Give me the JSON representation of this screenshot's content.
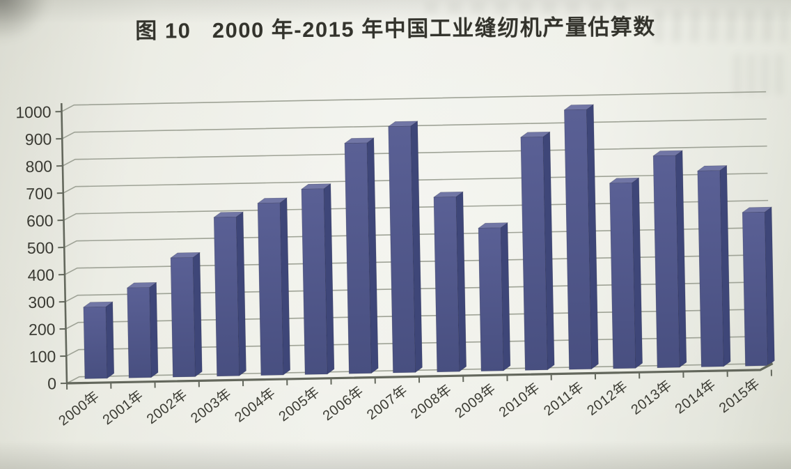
{
  "page": {
    "kind": "scanned print page with 3D bar chart"
  },
  "chart_data": {
    "type": "bar",
    "style": "3d-column",
    "title": "图 10   2000 年-2015 年中国工业缝纫机产量估算数",
    "categories": [
      "2000年",
      "2001年",
      "2002年",
      "2003年",
      "2004年",
      "2005年",
      "2006年",
      "2007年",
      "2008年",
      "2009年",
      "2010年",
      "2011年",
      "2012年",
      "2013年",
      "2014年",
      "2015年"
    ],
    "values": [
      270,
      340,
      450,
      600,
      650,
      700,
      870,
      930,
      660,
      540,
      880,
      980,
      700,
      800,
      740,
      580
    ],
    "xlabel": "",
    "ylabel": "",
    "ylim": [
      0,
      1000
    ],
    "y_ticks": [
      0,
      100,
      200,
      300,
      400,
      500,
      600,
      700,
      800,
      900,
      1000
    ],
    "grid": true,
    "legend": "none",
    "x_label_rotation_deg": -36,
    "colors": {
      "bar_front_light": "#5a6095",
      "bar_front_dark": "#484f80",
      "bar_top": "#7176a5",
      "bar_side": "#3e4678",
      "bar_edge": "rgba(28,32,58,0.35)",
      "gridline": "#9a9e91",
      "axis": "#63675c",
      "tick_text": "#3a3a33",
      "title_text": "#33332c",
      "paper": "#eaebe2"
    }
  }
}
